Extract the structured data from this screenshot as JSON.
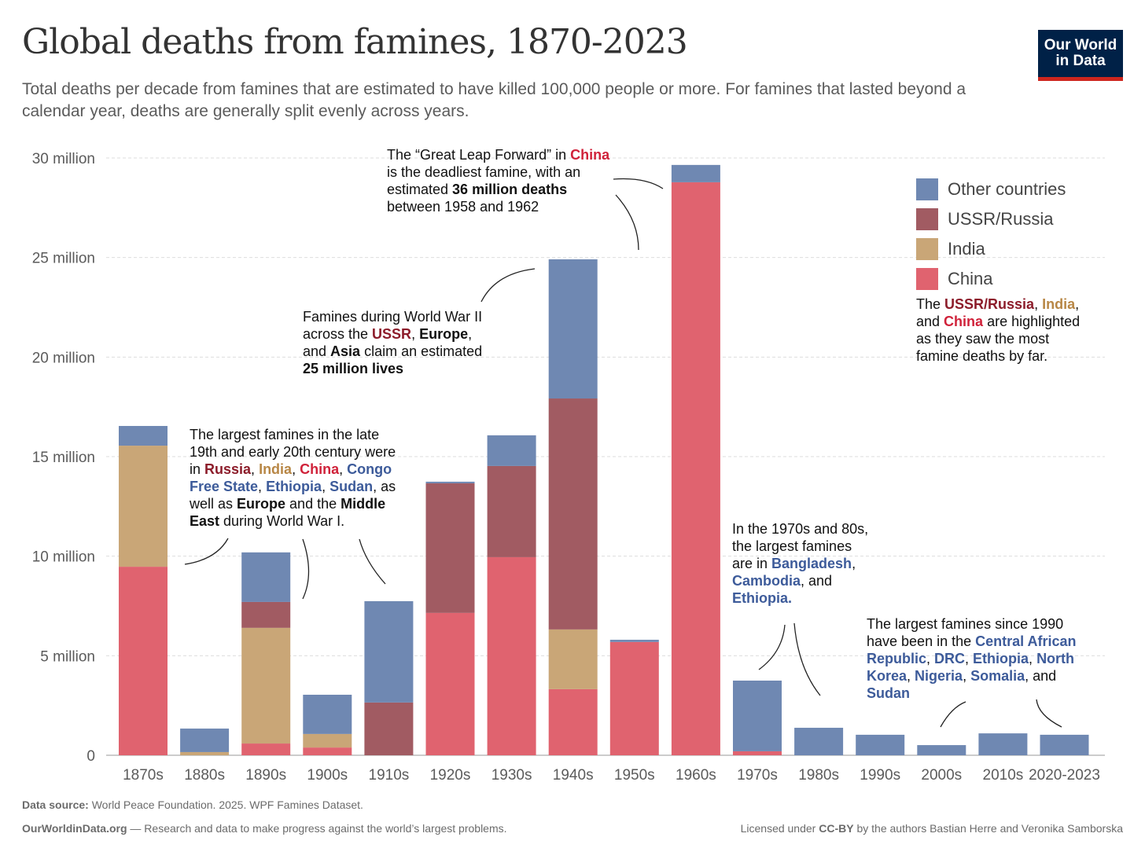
{
  "header": {
    "title": "Global deaths from famines, 1870-2023",
    "subtitle": "Total deaths per decade from famines that are estimated to have killed 100,000 people or more. For famines that lasted beyond a calendar year, deaths are generally split evenly across years.",
    "logo": "Our World in Data"
  },
  "colors": {
    "Other countries": "#6f88b2",
    "USSR/Russia": "#a15b62",
    "India": "#c9a677",
    "China": "#e0636f",
    "blue_text": "#3d5b9a",
    "red_text": "#d0223a",
    "ussr_text": "#8c1c2a",
    "india_text": "#b88746"
  },
  "chart_data": {
    "type": "bar",
    "stacked": true,
    "title": "Global deaths from famines, 1870-2023",
    "xlabel": "",
    "ylabel": "",
    "ylim": [
      0,
      30000000
    ],
    "grid": true,
    "legend_position": "right",
    "yticks": [
      0,
      5000000,
      10000000,
      15000000,
      20000000,
      25000000,
      30000000
    ],
    "ytick_labels": [
      "0",
      "5 million",
      "10 million",
      "15 million",
      "20 million",
      "25 million",
      "30 million"
    ],
    "categories": [
      "1870s",
      "1880s",
      "1890s",
      "1900s",
      "1910s",
      "1920s",
      "1930s",
      "1940s",
      "1950s",
      "1960s",
      "1970s",
      "1980s",
      "1990s",
      "2000s",
      "2010s",
      "2020-2023"
    ],
    "series": [
      {
        "name": "China",
        "values": [
          9.47,
          0,
          0.59,
          0.39,
          0,
          7.15,
          9.95,
          3.32,
          5.69,
          28.78,
          0.2,
          0,
          0,
          0,
          0,
          0
        ]
      },
      {
        "name": "India",
        "values": [
          6.08,
          0.16,
          5.81,
          0.68,
          0,
          0,
          0,
          3.0,
          0,
          0,
          0,
          0,
          0,
          0,
          0,
          0
        ]
      },
      {
        "name": "USSR/Russia",
        "values": [
          0,
          0,
          1.3,
          0,
          2.65,
          6.51,
          4.58,
          11.6,
          0,
          0,
          0,
          0,
          0,
          0,
          0,
          0
        ]
      },
      {
        "name": "Other countries",
        "values": [
          0.99,
          1.18,
          2.49,
          1.97,
          5.09,
          0.08,
          1.54,
          6.99,
          0.11,
          0.87,
          3.55,
          1.38,
          1.03,
          0.51,
          1.1,
          1.03
        ]
      }
    ],
    "units": "million deaths",
    "legend": [
      "Other countries",
      "USSR/Russia",
      "India",
      "China"
    ]
  },
  "annotations": [
    [
      {
        "t": "The “Great Leap Forward” in "
      },
      {
        "t": "China",
        "c": "red_text",
        "b": 1
      },
      {
        "t": "\nis the deadliest famine, with an\nestimated "
      },
      {
        "t": "36 million deaths",
        "b": 1
      },
      {
        "t": "\nbetween 1958 and 1962"
      }
    ],
    [
      {
        "t": "Famines during World War II\nacross the "
      },
      {
        "t": "USSR",
        "c": "ussr_text",
        "b": 1
      },
      {
        "t": ", "
      },
      {
        "t": "Europe",
        "b": 1
      },
      {
        "t": ",\nand "
      },
      {
        "t": "Asia",
        "b": 1
      },
      {
        "t": " claim an estimated\n"
      },
      {
        "t": "25 million lives",
        "b": 1
      }
    ],
    [
      {
        "t": "The largest famines in the late\n19th and early 20th century were\nin "
      },
      {
        "t": "Russia",
        "c": "ussr_text",
        "b": 1
      },
      {
        "t": ", "
      },
      {
        "t": "India",
        "c": "india_text",
        "b": 1
      },
      {
        "t": ", "
      },
      {
        "t": "China",
        "c": "red_text",
        "b": 1
      },
      {
        "t": ", "
      },
      {
        "t": "Congo\nFree State",
        "c": "blue_text",
        "b": 1
      },
      {
        "t": ", "
      },
      {
        "t": "Ethiopia",
        "c": "blue_text",
        "b": 1
      },
      {
        "t": ", "
      },
      {
        "t": "Sudan",
        "c": "blue_text",
        "b": 1
      },
      {
        "t": ", as\nwell as "
      },
      {
        "t": "Europe",
        "b": 1
      },
      {
        "t": " and the "
      },
      {
        "t": "Middle\nEast",
        "b": 1
      },
      {
        "t": " during World War I."
      }
    ],
    [
      {
        "t": "In the 1970s and 80s,\nthe largest famines\nare in "
      },
      {
        "t": "Bangladesh",
        "c": "blue_text",
        "b": 1
      },
      {
        "t": ",\n"
      },
      {
        "t": "Cambodia",
        "c": "blue_text",
        "b": 1
      },
      {
        "t": ", and\n"
      },
      {
        "t": "Ethiopia.",
        "c": "blue_text",
        "b": 1
      }
    ],
    [
      {
        "t": "The largest famines since 1990\nhave been in the "
      },
      {
        "t": "Central African\nRepublic",
        "c": "blue_text",
        "b": 1
      },
      {
        "t": ", "
      },
      {
        "t": "DRC",
        "c": "blue_text",
        "b": 1
      },
      {
        "t": ", "
      },
      {
        "t": "Ethiopia",
        "c": "blue_text",
        "b": 1
      },
      {
        "t": ", "
      },
      {
        "t": "North\nKorea",
        "c": "blue_text",
        "b": 1
      },
      {
        "t": ", "
      },
      {
        "t": "Nigeria",
        "c": "blue_text",
        "b": 1
      },
      {
        "t": ", "
      },
      {
        "t": "Somalia",
        "c": "blue_text",
        "b": 1
      },
      {
        "t": ", and\n"
      },
      {
        "t": "Sudan",
        "c": "blue_text",
        "b": 1
      }
    ],
    [
      {
        "t": "The "
      },
      {
        "t": "USSR/Russia",
        "c": "ussr_text",
        "b": 1
      },
      {
        "t": ", "
      },
      {
        "t": "India",
        "c": "india_text",
        "b": 1
      },
      {
        "t": ",\nand "
      },
      {
        "t": "China",
        "c": "red_text",
        "b": 1
      },
      {
        "t": " are highlighted\nas they saw the most\nfamine deaths by far."
      }
    ]
  ],
  "footer": {
    "source_label": "Data source:",
    "source": "World Peace Foundation. 2025. WPF Famines Dataset.",
    "site": "OurWorldinData.org",
    "tagline": "— Research and data to make progress against the world’s largest problems.",
    "license_pre": "Licensed under ",
    "license": "CC-BY",
    "license_post": " by the authors Bastian Herre and Veronika Samborska"
  }
}
